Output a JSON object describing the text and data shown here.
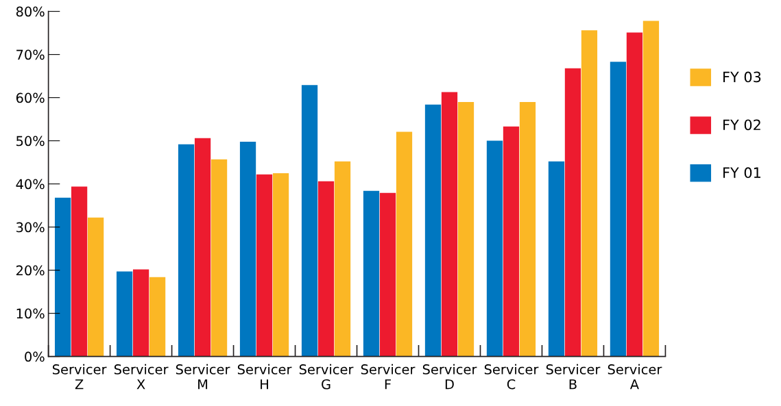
{
  "chart_data": {
    "type": "bar",
    "categories": [
      "Servicer\nZ",
      "Servicer\nX",
      "Servicer\nM",
      "Servicer\nH",
      "Servicer\nG",
      "Servicer\nF",
      "Servicer\nD",
      "Servicer\nC",
      "Servicer\nB",
      "Servicer\nA"
    ],
    "series": [
      {
        "name": "FY 01",
        "color": "#0077c0",
        "values": [
          36.8,
          19.7,
          49.2,
          49.8,
          62.9,
          38.4,
          58.4,
          50.0,
          45.2,
          68.3
        ]
      },
      {
        "name": "FY 02",
        "color": "#ed1b2f",
        "values": [
          39.4,
          20.2,
          50.6,
          42.2,
          40.6,
          37.9,
          61.3,
          53.3,
          66.8,
          75.1
        ]
      },
      {
        "name": "FY 03",
        "color": "#fbb725",
        "values": [
          32.2,
          18.4,
          45.7,
          42.5,
          45.2,
          52.1,
          59.0,
          59.0,
          75.6,
          77.8
        ]
      }
    ],
    "ylim": [
      0,
      80
    ],
    "yticks": [
      {
        "value": 0,
        "label": "0%"
      },
      {
        "value": 10,
        "label": "10%"
      },
      {
        "value": 20,
        "label": "20%"
      },
      {
        "value": 30,
        "label": "30%"
      },
      {
        "value": 40,
        "label": "40%"
      },
      {
        "value": 50,
        "label": "50%"
      },
      {
        "value": 60,
        "label": "60%"
      },
      {
        "value": 70,
        "label": "70%"
      },
      {
        "value": 80,
        "label": "80%"
      }
    ],
    "grid": false,
    "legend": "right"
  }
}
